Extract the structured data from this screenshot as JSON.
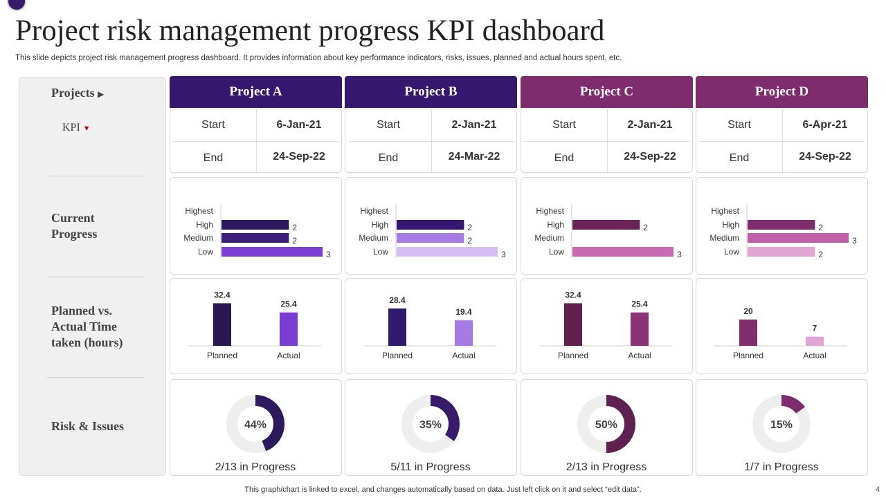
{
  "header": {
    "title": "Project risk management progress KPI dashboard",
    "subtitle": "This slide depicts project risk management progress dashboard. It provides information about key performance indicators, risks, issues, planned and actual hours spent, etc."
  },
  "sidebar": {
    "projects": "Projects",
    "kpi": "KPI",
    "progress": "Current Progress",
    "hours": "Planned vs. Actual Time taken (hours)",
    "risk": "Risk & Issues"
  },
  "projects": [
    {
      "name": "Project A",
      "color": "#35176e",
      "start_label": "Start",
      "start": "6-Jan-21",
      "end_label": "End",
      "end": "24-Sep-22",
      "progress": {
        "categories": [
          "Highest",
          "High",
          "Medium",
          "Low"
        ],
        "values": [
          null,
          2,
          2,
          3
        ],
        "colors": [
          "#2d1a5e",
          "#2d1a5e",
          "#3b1f7a",
          "#7b3fd6"
        ]
      },
      "hours": {
        "categories": [
          "Planned",
          "Actual"
        ],
        "values": [
          32.4,
          25.4
        ],
        "colors": [
          "#2a1650",
          "#7a3dd4"
        ]
      },
      "risk": {
        "value": 44,
        "value_label": "44%",
        "caption": "2/13 in Progress",
        "color": "#2d1a5e"
      }
    },
    {
      "name": "Project B",
      "color": "#35176e",
      "start_label": "Start",
      "start": "2-Jan-21",
      "end_label": "End",
      "end": "24-Mar-22",
      "progress": {
        "categories": [
          "Highest",
          "High",
          "Medium",
          "Low"
        ],
        "values": [
          null,
          2,
          2,
          3
        ],
        "colors": [
          "#35176f",
          "#35176f",
          "#a77be6",
          "#d6bff2"
        ]
      },
      "hours": {
        "categories": [
          "Planned",
          "Actual"
        ],
        "values": [
          28.4,
          19.4
        ],
        "colors": [
          "#311a6b",
          "#a77be6"
        ]
      },
      "risk": {
        "value": 35,
        "value_label": "35%",
        "caption": "5/11 in Progress",
        "color": "#3a1a6b"
      }
    },
    {
      "name": "Project C",
      "color": "#7e2c6e",
      "start_label": "Start",
      "start": "2-Jan-21",
      "end_label": "End",
      "end": "24-Sep-22",
      "progress": {
        "categories": [
          "Highest",
          "High",
          "Medium",
          "Low"
        ],
        "values": [
          null,
          2,
          null,
          3
        ],
        "colors": [
          "#6b2358",
          "#6b2358",
          "#a0408a",
          "#c86bb0"
        ]
      },
      "hours": {
        "categories": [
          "Planned",
          "Actual"
        ],
        "values": [
          32.4,
          25.4
        ],
        "colors": [
          "#62204f",
          "#8a3377"
        ]
      },
      "risk": {
        "value": 50,
        "value_label": "50%",
        "caption": "2/13 in Progress",
        "color": "#5e2150"
      }
    },
    {
      "name": "Project D",
      "color": "#7e2c6e",
      "start_label": "Start",
      "start": "6-Apr-21",
      "end_label": "End",
      "end": "24-Sep-22",
      "progress": {
        "categories": [
          "Highest",
          "High",
          "Medium",
          "Low"
        ],
        "values": [
          null,
          2,
          3,
          2
        ],
        "colors": [
          "#7e2c6e",
          "#7e2c6e",
          "#c160a8",
          "#e0a5d2"
        ]
      },
      "hours": {
        "categories": [
          "Planned",
          "Actual"
        ],
        "values": [
          20,
          7
        ],
        "colors": [
          "#7f2d6d",
          "#e0a5d2"
        ]
      },
      "risk": {
        "value": 15,
        "value_label": "15%",
        "caption": "1/7 in Progress",
        "color": "#7e2c6e"
      }
    }
  ],
  "footer": {
    "note": "This graph/chart is linked to excel,  and changes automatically based on data. Just left click on it and select “edit data”.",
    "page": "4"
  }
}
